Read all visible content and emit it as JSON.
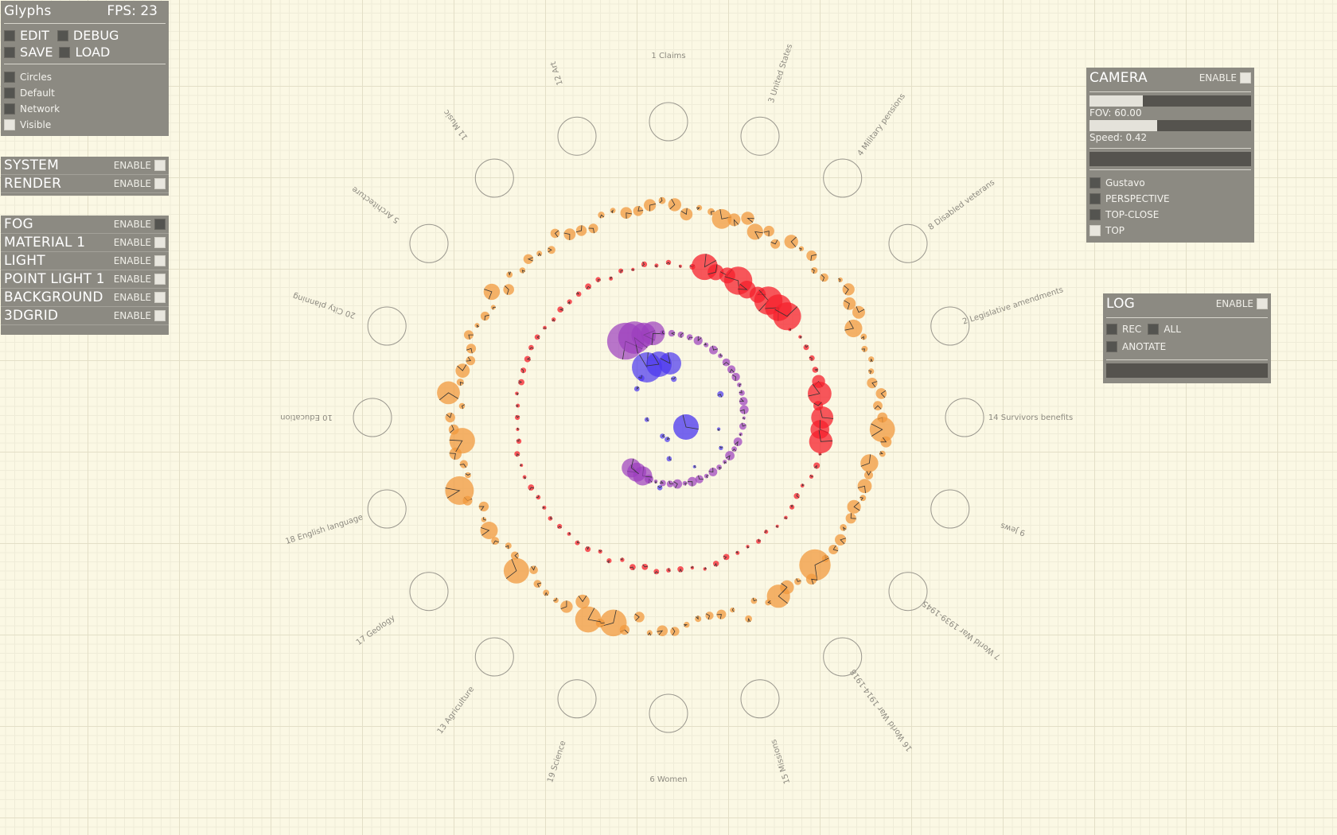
{
  "glyphs_panel": {
    "title": "Glyphs",
    "fps_label": "FPS: 23",
    "edit_label": "EDIT",
    "debug_label": "DEBUG",
    "save_label": "SAVE",
    "load_label": "LOAD",
    "options": [
      {
        "label": "Circles",
        "checked": false
      },
      {
        "label": "Default",
        "checked": false
      },
      {
        "label": "Network",
        "checked": false
      },
      {
        "label": "Visible",
        "checked": true
      }
    ]
  },
  "left_sections": [
    {
      "label": "SYSTEM",
      "enable_label": "ENABLE",
      "enabled": true
    },
    {
      "label": "RENDER",
      "enable_label": "ENABLE",
      "enabled": true
    }
  ],
  "left_sections_2": [
    {
      "label": "FOG",
      "enable_label": "ENABLE",
      "enabled": false
    },
    {
      "label": "MATERIAL 1",
      "enable_label": "ENABLE",
      "enabled": true
    },
    {
      "label": "LIGHT",
      "enable_label": "ENABLE",
      "enabled": true
    },
    {
      "label": "POINT LIGHT 1",
      "enable_label": "ENABLE",
      "enabled": true
    },
    {
      "label": "BACKGROUND",
      "enable_label": "ENABLE",
      "enabled": true
    },
    {
      "label": "3DGRID",
      "enable_label": "ENABLE",
      "enabled": true
    }
  ],
  "camera_panel": {
    "title": "CAMERA",
    "enable_label": "ENABLE",
    "enabled": true,
    "fov_label": "FOV: 60.00",
    "fov_fraction": 0.33,
    "speed_label": "Speed: 0.42",
    "speed_fraction": 0.42,
    "options": [
      {
        "label": "Gustavo",
        "checked": false
      },
      {
        "label": "PERSPECTIVE",
        "checked": false
      },
      {
        "label": "TOP-CLOSE",
        "checked": false
      },
      {
        "label": "TOP",
        "checked": true
      }
    ]
  },
  "log_panel": {
    "title": "LOG",
    "enable_label": "ENABLE",
    "enabled": true,
    "rec_label": "REC",
    "all_label": "ALL",
    "anotate_label": "ANOTATE"
  },
  "categories": [
    {
      "label": "1 Claims"
    },
    {
      "label": "3 United States"
    },
    {
      "label": "4 Military pensions"
    },
    {
      "label": "8 Disabled veterans"
    },
    {
      "label": "2 Legislative amendments"
    },
    {
      "label": "14 Survivors benefits"
    },
    {
      "label": "9 Jews"
    },
    {
      "label": "7 World War 1939-1945"
    },
    {
      "label": "16 World War 1914-1918"
    },
    {
      "label": "15 Missions"
    },
    {
      "label": "6 Women"
    },
    {
      "label": "19 Science"
    },
    {
      "label": "13 Agriculture"
    },
    {
      "label": "17 Geology"
    },
    {
      "label": "18 English language"
    },
    {
      "label": "10 Education"
    },
    {
      "label": "20 City planning"
    },
    {
      "label": "5 Architecture"
    },
    {
      "label": "11 Music"
    },
    {
      "label": "12 Art"
    }
  ],
  "colors": {
    "orange": "#f29a3e",
    "red": "#f5202c",
    "purple": "#9b3dbd",
    "blue": "#4a36f0",
    "panel": "#8c8a82"
  }
}
